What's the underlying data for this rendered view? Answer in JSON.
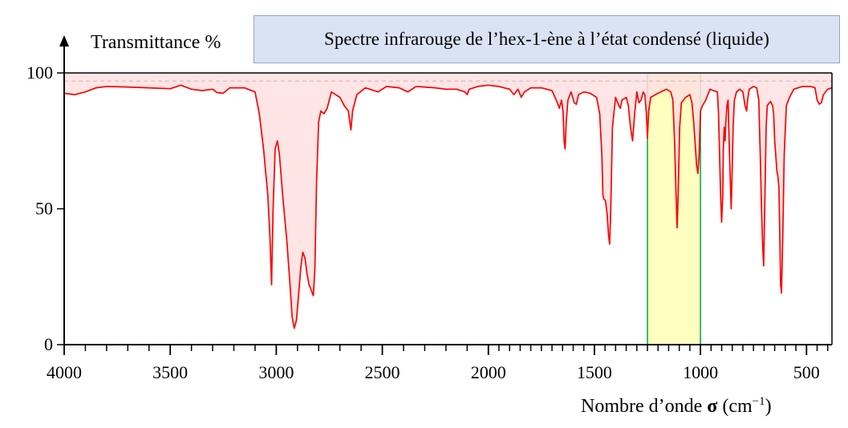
{
  "chart_data": {
    "type": "line",
    "title": "Spectre infrarouge de l’hex-1-ène à l’état condensé (liquide)",
    "ylabel": "Transmittance %",
    "xlabel_prefix": "Nombre d’onde",
    "xlabel_symbol": "σ",
    "xlabel_unit_open": " (cm",
    "xlabel_unit_exp": "−1",
    "xlabel_unit_close": ")",
    "xlim": [
      4000,
      380
    ],
    "ylim": [
      0,
      100
    ],
    "x_axis_reversed": true,
    "y_ticks": [
      0,
      50,
      100
    ],
    "x_tick_labels": [
      4000,
      3500,
      3000,
      2500,
      2000,
      1500,
      1000,
      500
    ],
    "x_minor_step": 100,
    "x_minor_step_below_2000": 50,
    "dashed_line": 97,
    "highlight_band": {
      "from": 1250,
      "to": 1000,
      "color": "#ffffc0",
      "edge_color": "#00b050"
    },
    "colors": {
      "line": "#ff0000",
      "fill": "#ffe0e0"
    },
    "series": [
      {
        "points": [
          [
            4000,
            92.5
          ],
          [
            3950,
            92
          ],
          [
            3900,
            93
          ],
          [
            3850,
            94.5
          ],
          [
            3800,
            95
          ],
          [
            3700,
            94.8
          ],
          [
            3600,
            94.5
          ],
          [
            3500,
            94.2
          ],
          [
            3450,
            95.5
          ],
          [
            3400,
            94
          ],
          [
            3350,
            93.5
          ],
          [
            3300,
            94
          ],
          [
            3280,
            92.8
          ],
          [
            3250,
            92.5
          ],
          [
            3220,
            94.5
          ],
          [
            3150,
            94.5
          ],
          [
            3100,
            93
          ],
          [
            3080,
            85
          ],
          [
            3060,
            72
          ],
          [
            3040,
            55
          ],
          [
            3030,
            40
          ],
          [
            3022,
            22
          ],
          [
            3015,
            50
          ],
          [
            3005,
            72
          ],
          [
            2995,
            75
          ],
          [
            2985,
            70
          ],
          [
            2970,
            55
          ],
          [
            2950,
            38
          ],
          [
            2935,
            22
          ],
          [
            2925,
            10
          ],
          [
            2915,
            6
          ],
          [
            2905,
            9
          ],
          [
            2895,
            18
          ],
          [
            2885,
            28
          ],
          [
            2875,
            34
          ],
          [
            2865,
            32
          ],
          [
            2855,
            26
          ],
          [
            2845,
            22
          ],
          [
            2835,
            20
          ],
          [
            2825,
            18
          ],
          [
            2818,
            28
          ],
          [
            2810,
            60
          ],
          [
            2800,
            82
          ],
          [
            2790,
            86
          ],
          [
            2775,
            85
          ],
          [
            2760,
            87
          ],
          [
            2740,
            93
          ],
          [
            2700,
            91
          ],
          [
            2680,
            88
          ],
          [
            2660,
            86
          ],
          [
            2648,
            79
          ],
          [
            2640,
            86
          ],
          [
            2620,
            92
          ],
          [
            2580,
            94.5
          ],
          [
            2520,
            93
          ],
          [
            2480,
            95
          ],
          [
            2420,
            94.5
          ],
          [
            2380,
            93
          ],
          [
            2340,
            95
          ],
          [
            2250,
            94.5
          ],
          [
            2200,
            94
          ],
          [
            2150,
            94
          ],
          [
            2110,
            93
          ],
          [
            2100,
            92
          ],
          [
            2090,
            94
          ],
          [
            2050,
            95
          ],
          [
            2000,
            95.5
          ],
          [
            1950,
            95
          ],
          [
            1900,
            94
          ],
          [
            1880,
            92
          ],
          [
            1860,
            94
          ],
          [
            1845,
            91
          ],
          [
            1830,
            93
          ],
          [
            1800,
            94.5
          ],
          [
            1750,
            94.5
          ],
          [
            1700,
            93.5
          ],
          [
            1680,
            90
          ],
          [
            1665,
            87
          ],
          [
            1655,
            90
          ],
          [
            1648,
            86
          ],
          [
            1643,
            75
          ],
          [
            1638,
            72
          ],
          [
            1633,
            82
          ],
          [
            1625,
            90
          ],
          [
            1610,
            93
          ],
          [
            1595,
            89
          ],
          [
            1585,
            88.5
          ],
          [
            1575,
            92
          ],
          [
            1550,
            93
          ],
          [
            1520,
            92.5
          ],
          [
            1490,
            91
          ],
          [
            1475,
            85
          ],
          [
            1465,
            70
          ],
          [
            1460,
            55
          ],
          [
            1455,
            53.5
          ],
          [
            1448,
            53
          ],
          [
            1440,
            48
          ],
          [
            1433,
            40
          ],
          [
            1428,
            37
          ],
          [
            1423,
            50
          ],
          [
            1415,
            80
          ],
          [
            1400,
            91
          ],
          [
            1385,
            88
          ],
          [
            1378,
            87
          ],
          [
            1370,
            90
          ],
          [
            1350,
            91
          ],
          [
            1340,
            88
          ],
          [
            1330,
            80
          ],
          [
            1320,
            75
          ],
          [
            1310,
            85
          ],
          [
            1300,
            93
          ],
          [
            1290,
            89
          ],
          [
            1280,
            90
          ],
          [
            1270,
            93
          ],
          [
            1262,
            92
          ],
          [
            1255,
            85
          ],
          [
            1250,
            76
          ],
          [
            1244,
            86
          ],
          [
            1235,
            91
          ],
          [
            1200,
            92.5
          ],
          [
            1160,
            94
          ],
          [
            1140,
            93
          ],
          [
            1130,
            90
          ],
          [
            1122,
            75
          ],
          [
            1115,
            55
          ],
          [
            1110,
            43
          ],
          [
            1105,
            55
          ],
          [
            1098,
            80
          ],
          [
            1090,
            89
          ],
          [
            1070,
            91
          ],
          [
            1050,
            92
          ],
          [
            1040,
            89
          ],
          [
            1032,
            82
          ],
          [
            1025,
            74
          ],
          [
            1018,
            66
          ],
          [
            1012,
            63
          ],
          [
            1006,
            70
          ],
          [
            1000,
            86
          ],
          [
            990,
            88
          ],
          [
            975,
            90
          ],
          [
            955,
            94
          ],
          [
            940,
            93.5
          ],
          [
            920,
            93
          ],
          [
            915,
            85
          ],
          [
            910,
            70
          ],
          [
            905,
            55
          ],
          [
            900,
            45
          ],
          [
            895,
            55
          ],
          [
            892,
            72
          ],
          [
            888,
            80
          ],
          [
            884,
            75
          ],
          [
            880,
            82
          ],
          [
            875,
            88
          ],
          [
            870,
            90
          ],
          [
            865,
            75
          ],
          [
            860,
            62
          ],
          [
            855,
            50
          ],
          [
            850,
            65
          ],
          [
            846,
            80
          ],
          [
            840,
            90
          ],
          [
            830,
            93
          ],
          [
            815,
            94
          ],
          [
            800,
            93
          ],
          [
            790,
            88
          ],
          [
            782,
            86
          ],
          [
            778,
            90
          ],
          [
            770,
            94
          ],
          [
            750,
            95
          ],
          [
            735,
            94.5
          ],
          [
            725,
            90
          ],
          [
            718,
            70
          ],
          [
            712,
            50
          ],
          [
            706,
            35
          ],
          [
            702,
            29
          ],
          [
            697,
            50
          ],
          [
            690,
            80
          ],
          [
            685,
            88
          ],
          [
            670,
            89.5
          ],
          [
            660,
            88
          ],
          [
            655,
            85
          ],
          [
            650,
            75
          ],
          [
            645,
            70
          ],
          [
            640,
            64
          ],
          [
            635,
            62
          ],
          [
            630,
            58
          ],
          [
            626,
            40
          ],
          [
            622,
            22
          ],
          [
            618,
            19
          ],
          [
            612,
            40
          ],
          [
            605,
            70
          ],
          [
            595,
            88
          ],
          [
            580,
            91
          ],
          [
            560,
            94
          ],
          [
            520,
            95
          ],
          [
            480,
            95
          ],
          [
            460,
            94.5
          ],
          [
            450,
            90
          ],
          [
            440,
            88.5
          ],
          [
            430,
            89
          ],
          [
            420,
            92
          ],
          [
            400,
            94
          ],
          [
            380,
            94.5
          ]
        ]
      }
    ]
  }
}
